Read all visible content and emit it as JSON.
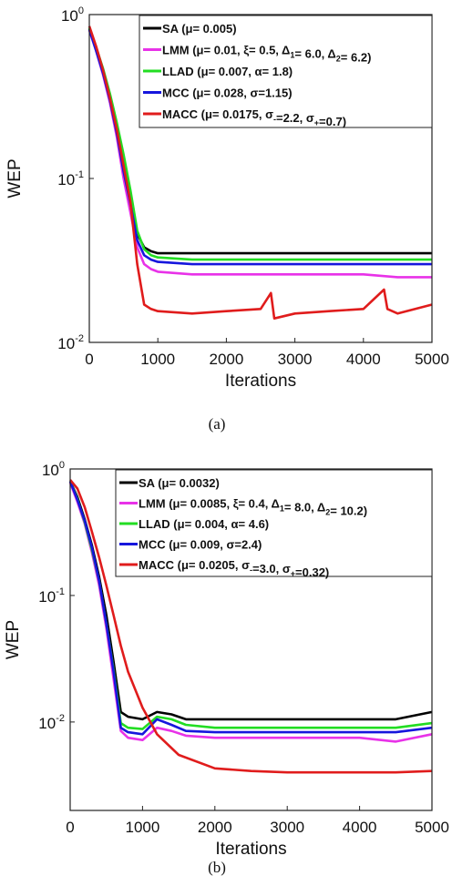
{
  "chart_data": [
    {
      "type": "line",
      "panel": "(a)",
      "xlabel": "Iterations",
      "ylabel": "WEP",
      "xlim": [
        0,
        5000
      ],
      "ylim": [
        0.01,
        1
      ],
      "yscale": "log",
      "grid": false,
      "legend_placement": "top-right",
      "xticks": [
        0,
        1000,
        2000,
        3000,
        4000,
        5000
      ],
      "yticks": [
        {
          "value": 1,
          "base": "10",
          "exp": "0"
        },
        {
          "value": 0.1,
          "base": "10",
          "exp": "-1"
        },
        {
          "value": 0.01,
          "base": "10",
          "exp": "-2"
        }
      ],
      "series": [
        {
          "name": "SA",
          "color": "#000000",
          "legend": [
            {
              "t": "SA"
            },
            {
              "t": "      (μ= 0.005)"
            }
          ],
          "x": [
            0,
            100,
            200,
            300,
            400,
            500,
            600,
            700,
            800,
            900,
            1000,
            1500,
            2000,
            2500,
            3000,
            3500,
            4000,
            4500,
            5000
          ],
          "y": [
            0.82,
            0.62,
            0.45,
            0.31,
            0.2,
            0.12,
            0.075,
            0.046,
            0.038,
            0.036,
            0.035,
            0.035,
            0.035,
            0.035,
            0.035,
            0.035,
            0.035,
            0.035,
            0.035
          ]
        },
        {
          "name": "LMM",
          "color": "#e832e8",
          "legend": [
            {
              "t": "LMM"
            },
            {
              "t": "   (μ= 0.01, ξ= 0.5, Δ"
            },
            {
              "t": "1",
              "sub": true
            },
            {
              "t": "= 6.0, Δ"
            },
            {
              "t": "2",
              "sub": true
            },
            {
              "t": "= 6.2)"
            }
          ],
          "x": [
            0,
            100,
            200,
            300,
            400,
            500,
            600,
            700,
            800,
            900,
            1000,
            1500,
            2000,
            2500,
            3000,
            3500,
            4000,
            4500,
            5000
          ],
          "y": [
            0.8,
            0.6,
            0.43,
            0.29,
            0.18,
            0.1,
            0.062,
            0.038,
            0.03,
            0.028,
            0.027,
            0.026,
            0.026,
            0.026,
            0.026,
            0.026,
            0.026,
            0.025,
            0.025
          ]
        },
        {
          "name": "LLAD",
          "color": "#22dd22",
          "legend": [
            {
              "t": "LLAD"
            },
            {
              "t": "   (μ= 0.007,  α= 1.8)"
            }
          ],
          "x": [
            0,
            100,
            200,
            300,
            400,
            500,
            600,
            700,
            800,
            900,
            1000,
            1500,
            2000,
            2500,
            3000,
            3500,
            4000,
            4500,
            5000
          ],
          "y": [
            0.83,
            0.63,
            0.47,
            0.33,
            0.22,
            0.14,
            0.085,
            0.048,
            0.037,
            0.034,
            0.033,
            0.032,
            0.032,
            0.032,
            0.032,
            0.032,
            0.032,
            0.032,
            0.032
          ]
        },
        {
          "name": "MCC",
          "color": "#1616dd",
          "legend": [
            {
              "t": "MCC"
            },
            {
              "t": "  (μ= 0.028, σ=1.15)"
            }
          ],
          "x": [
            0,
            100,
            200,
            300,
            400,
            500,
            600,
            700,
            800,
            900,
            1000,
            1500,
            2000,
            2500,
            3000,
            3500,
            4000,
            4500,
            5000
          ],
          "y": [
            0.81,
            0.6,
            0.44,
            0.3,
            0.19,
            0.11,
            0.07,
            0.042,
            0.034,
            0.032,
            0.031,
            0.03,
            0.03,
            0.03,
            0.03,
            0.03,
            0.03,
            0.03,
            0.03
          ]
        },
        {
          "name": "MACC",
          "color": "#e01c1c",
          "legend": [
            {
              "t": "MACC"
            },
            {
              "t": " (μ= 0.0175, σ"
            },
            {
              "t": "-",
              "sub": true
            },
            {
              "t": "=2.2, σ"
            },
            {
              "t": "+",
              "sub": true
            },
            {
              "t": "=0.7)"
            }
          ],
          "x": [
            0,
            100,
            200,
            300,
            400,
            500,
            600,
            700,
            800,
            900,
            1000,
            1500,
            2000,
            2500,
            2650,
            2700,
            3000,
            3500,
            4000,
            4300,
            4350,
            4500,
            5000
          ],
          "y": [
            0.85,
            0.64,
            0.46,
            0.31,
            0.2,
            0.12,
            0.072,
            0.03,
            0.017,
            0.016,
            0.0155,
            0.015,
            0.0155,
            0.016,
            0.02,
            0.014,
            0.015,
            0.0155,
            0.016,
            0.021,
            0.016,
            0.015,
            0.017
          ]
        }
      ]
    },
    {
      "type": "line",
      "panel": "(b)",
      "xlabel": "Iterations",
      "ylabel": "WEP",
      "xlim": [
        0,
        5000
      ],
      "ylim": [
        0.002,
        1
      ],
      "yscale": "log",
      "grid": false,
      "legend_placement": "top-right",
      "xticks": [
        0,
        1000,
        2000,
        3000,
        4000,
        5000
      ],
      "yticks": [
        {
          "value": 1,
          "base": "10",
          "exp": "0"
        },
        {
          "value": 0.1,
          "base": "10",
          "exp": "-1"
        },
        {
          "value": 0.01,
          "base": "10",
          "exp": "-2"
        }
      ],
      "series": [
        {
          "name": "SA",
          "color": "#000000",
          "legend": [
            {
              "t": "SA"
            },
            {
              "t": "       (μ= 0.0032)"
            }
          ],
          "x": [
            0,
            100,
            200,
            300,
            400,
            500,
            600,
            700,
            800,
            1000,
            1200,
            1400,
            1600,
            2000,
            2500,
            3000,
            3500,
            4000,
            4500,
            5000
          ],
          "y": [
            0.8,
            0.6,
            0.4,
            0.25,
            0.14,
            0.07,
            0.03,
            0.012,
            0.011,
            0.0105,
            0.012,
            0.0115,
            0.0105,
            0.0105,
            0.0105,
            0.0105,
            0.0105,
            0.0105,
            0.0105,
            0.012
          ]
        },
        {
          "name": "LMM",
          "color": "#e832e8",
          "legend": [
            {
              "t": "LMM"
            },
            {
              "t": "     (μ= 0.0085, ξ= 0.4, Δ"
            },
            {
              "t": "1",
              "sub": true
            },
            {
              "t": "= 8.0, Δ"
            },
            {
              "t": "2",
              "sub": true
            },
            {
              "t": "= 10.2)"
            }
          ],
          "x": [
            0,
            100,
            200,
            300,
            400,
            500,
            600,
            700,
            800,
            1000,
            1200,
            1400,
            1600,
            2000,
            2500,
            3000,
            3500,
            4000,
            4500,
            5000
          ],
          "y": [
            0.78,
            0.55,
            0.37,
            0.22,
            0.12,
            0.055,
            0.022,
            0.0085,
            0.0075,
            0.0072,
            0.009,
            0.0085,
            0.0078,
            0.0075,
            0.0075,
            0.0075,
            0.0075,
            0.0075,
            0.007,
            0.008
          ]
        },
        {
          "name": "LLAD",
          "color": "#22dd22",
          "legend": [
            {
              "t": "LLAD"
            },
            {
              "t": "   (μ= 0.004, α= 4.6)"
            }
          ],
          "x": [
            0,
            100,
            200,
            300,
            400,
            500,
            600,
            700,
            800,
            1000,
            1200,
            1400,
            1600,
            2000,
            2500,
            3000,
            3500,
            4000,
            4500,
            5000
          ],
          "y": [
            0.8,
            0.58,
            0.38,
            0.23,
            0.13,
            0.06,
            0.026,
            0.0098,
            0.009,
            0.0088,
            0.011,
            0.0105,
            0.0095,
            0.009,
            0.009,
            0.009,
            0.009,
            0.009,
            0.009,
            0.0098
          ]
        },
        {
          "name": "MCC",
          "color": "#1616dd",
          "legend": [
            {
              "t": "MCC"
            },
            {
              "t": "    (μ= 0.009, σ=2.4)"
            }
          ],
          "x": [
            0,
            100,
            200,
            300,
            400,
            500,
            600,
            700,
            800,
            1000,
            1200,
            1400,
            1600,
            2000,
            2500,
            3000,
            3500,
            4000,
            4500,
            5000
          ],
          "y": [
            0.8,
            0.57,
            0.39,
            0.24,
            0.13,
            0.06,
            0.025,
            0.009,
            0.0083,
            0.008,
            0.0105,
            0.0095,
            0.0085,
            0.0083,
            0.0083,
            0.0083,
            0.0083,
            0.0083,
            0.0083,
            0.009
          ]
        },
        {
          "name": "MACC",
          "color": "#e01c1c",
          "legend": [
            {
              "t": "MACC"
            },
            {
              "t": " (μ= 0.0205, σ"
            },
            {
              "t": "-",
              "sub": true
            },
            {
              "t": "=3.0, σ"
            },
            {
              "t": "+",
              "sub": true
            },
            {
              "t": "=0.32)"
            }
          ],
          "x": [
            0,
            100,
            200,
            300,
            400,
            500,
            600,
            700,
            800,
            1000,
            1200,
            1500,
            2000,
            2500,
            3000,
            3500,
            4000,
            4500,
            5000
          ],
          "y": [
            0.82,
            0.7,
            0.5,
            0.32,
            0.2,
            0.12,
            0.07,
            0.04,
            0.025,
            0.013,
            0.008,
            0.0055,
            0.0043,
            0.0041,
            0.004,
            0.004,
            0.004,
            0.004,
            0.0041
          ]
        }
      ]
    }
  ],
  "captions": [
    "(a)",
    "(b)"
  ]
}
